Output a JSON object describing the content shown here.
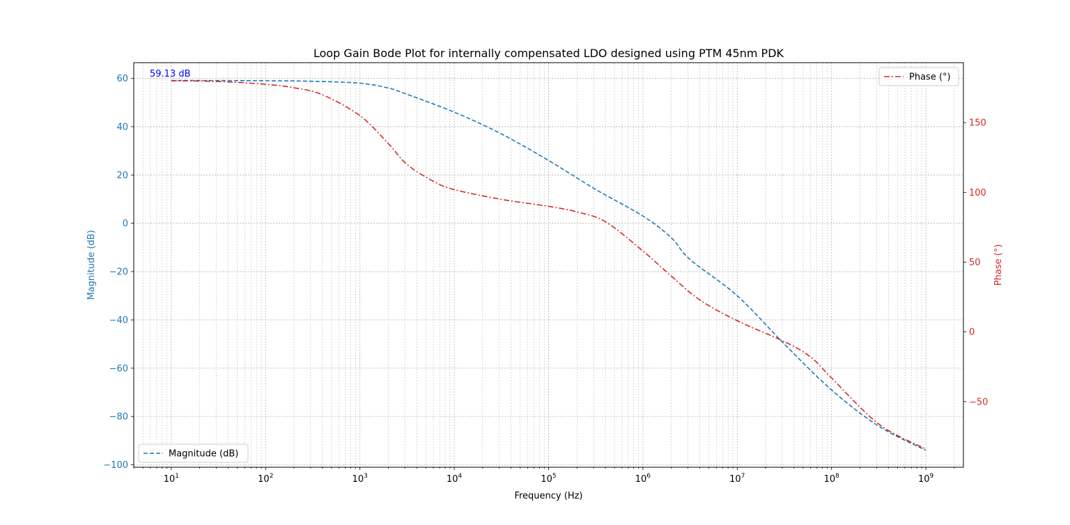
{
  "chart_data": {
    "type": "line",
    "title": "Loop Gain Bode Plot for internally compensated LDO designed using PTM 45nm PDK",
    "xlabel": "Frequency (Hz)",
    "ylabel_left": "Magnitude (dB)",
    "ylabel_right": "Phase (°)",
    "xscale": "log",
    "xlim": [
      4,
      2500000000
    ],
    "ylim_left": [
      -101,
      66.5
    ],
    "ylim_right": [
      -97,
      193
    ],
    "x_tick_labels": [
      {
        "base": "10",
        "exp": "1",
        "value": 10
      },
      {
        "base": "10",
        "exp": "2",
        "value": 100
      },
      {
        "base": "10",
        "exp": "3",
        "value": 1000
      },
      {
        "base": "10",
        "exp": "4",
        "value": 10000
      },
      {
        "base": "10",
        "exp": "5",
        "value": 100000
      },
      {
        "base": "10",
        "exp": "6",
        "value": 1000000
      },
      {
        "base": "10",
        "exp": "7",
        "value": 10000000
      },
      {
        "base": "10",
        "exp": "8",
        "value": 100000000
      },
      {
        "base": "10",
        "exp": "9",
        "value": 1000000000
      }
    ],
    "y_left_ticks": [
      -100,
      -80,
      -60,
      -40,
      -20,
      0,
      20,
      40,
      60
    ],
    "y_left_tick_labels": [
      "−100",
      "−80",
      "−60",
      "−40",
      "−20",
      "0",
      "20",
      "40",
      "60"
    ],
    "y_right_ticks": [
      -50,
      0,
      50,
      100,
      150
    ],
    "y_right_tick_labels": [
      "−50",
      "0",
      "50",
      "100",
      "150"
    ],
    "grid": true,
    "series": [
      {
        "name": "Magnitude (dB)",
        "axis": "left",
        "color": "#1f77b4",
        "style": "dashed",
        "legend_position": "lower-left",
        "x": [
          10,
          31.6,
          100,
          316,
          1000,
          2000,
          3160,
          10000,
          31600,
          100000,
          316000,
          1000000,
          2000000,
          3160000,
          10000000,
          31600000,
          100000000,
          316000000,
          1000000000
        ],
        "y": [
          59.13,
          59.1,
          59.0,
          58.8,
          58,
          56,
          53.4,
          46,
          37,
          26,
          14,
          3,
          -6,
          -15,
          -30,
          -50,
          -69,
          -84,
          -94
        ]
      },
      {
        "name": "Phase (°)",
        "axis": "right",
        "color": "#d62728",
        "style": "dashdot",
        "legend_position": "upper-right",
        "x": [
          10,
          31.6,
          100,
          200,
          400,
          1000,
          2000,
          3160,
          6000,
          10000,
          31600,
          100000,
          200000,
          400000,
          1000000,
          2000000,
          4000000,
          10000000,
          31600000,
          60000000,
          100000000,
          316000000,
          1000000000
        ],
        "y": [
          180,
          179.5,
          177.5,
          175,
          170,
          155,
          135,
          120,
          108,
          102,
          95,
          90,
          86,
          79,
          58,
          40,
          23,
          8,
          -7,
          -18,
          -33,
          -66,
          -84
        ]
      }
    ],
    "annotations": [
      {
        "text": "59.13 dB",
        "x": 10,
        "y": 59.13,
        "color": "#0000ff"
      }
    ]
  }
}
